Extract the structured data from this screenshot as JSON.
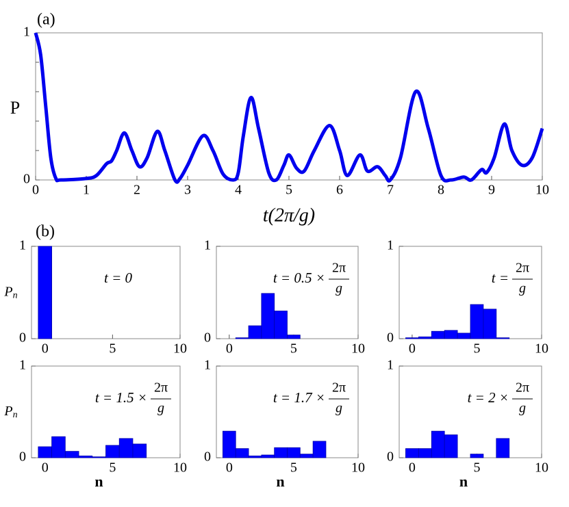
{
  "chart_data": [
    {
      "type": "line",
      "panel_label": "(a)",
      "xlabel": "t(2π/g)",
      "ylabel": "P",
      "color": "#0000ee",
      "x": [
        0,
        0.1,
        0.2,
        0.3,
        0.4,
        0.5,
        1.0,
        1.2,
        1.4,
        1.5,
        1.6,
        1.75,
        1.9,
        2.05,
        2.2,
        2.4,
        2.55,
        2.75,
        2.85,
        3.0,
        3.3,
        3.5,
        3.7,
        3.9,
        4.0,
        4.1,
        4.25,
        4.4,
        4.6,
        4.75,
        4.9,
        5.0,
        5.15,
        5.3,
        5.5,
        5.8,
        6.0,
        6.15,
        6.4,
        6.55,
        6.75,
        6.9,
        7.0,
        7.2,
        7.5,
        7.75,
        8.0,
        8.2,
        8.45,
        8.6,
        8.8,
        8.9,
        9.05,
        9.25,
        9.4,
        9.6,
        9.8,
        10
      ],
      "values": [
        1.0,
        0.85,
        0.5,
        0.15,
        0.01,
        0.0,
        0.01,
        0.03,
        0.11,
        0.13,
        0.2,
        0.32,
        0.2,
        0.09,
        0.15,
        0.33,
        0.2,
        0.0,
        0.01,
        0.1,
        0.3,
        0.2,
        0.04,
        0.0,
        0.05,
        0.3,
        0.56,
        0.35,
        0.05,
        0.0,
        0.1,
        0.17,
        0.08,
        0.06,
        0.2,
        0.37,
        0.2,
        0.03,
        0.17,
        0.06,
        0.09,
        0.03,
        0.0,
        0.15,
        0.6,
        0.35,
        0.03,
        0.0,
        0.02,
        0.0,
        0.07,
        0.05,
        0.15,
        0.38,
        0.2,
        0.1,
        0.15,
        0.35
      ],
      "xlim": [
        0,
        10
      ],
      "ylim": [
        0,
        1
      ],
      "xticks": [
        0,
        1,
        2,
        3,
        4,
        5,
        6,
        7,
        8,
        9,
        10
      ],
      "yticks": [
        0,
        1
      ],
      "yminorticks": [
        0.2,
        0.4,
        0.6,
        0.8
      ]
    },
    {
      "type": "bar",
      "panel_label": "(b)",
      "ylabel": "P",
      "ylabel_sub": "n",
      "annotation": {
        "text": "t = 0"
      },
      "color": "#0000ff",
      "x": [
        0
      ],
      "values": [
        1.0
      ],
      "xlim": [
        -1,
        10
      ],
      "ylim": [
        0,
        1
      ],
      "xticks": [
        0,
        5,
        10
      ],
      "yticks": [
        0,
        1
      ]
    },
    {
      "type": "bar",
      "annotation": {
        "text": "t = 0.5 ×",
        "numerator": "2π",
        "denominator": "g"
      },
      "color": "#0000ff",
      "x": [
        1,
        2,
        3,
        4,
        5
      ],
      "values": [
        0.01,
        0.14,
        0.49,
        0.3,
        0.04
      ],
      "xlim": [
        -1,
        10
      ],
      "ylim": [
        0,
        1
      ],
      "xticks": [
        0,
        5,
        10
      ],
      "yticks": [
        0,
        1
      ]
    },
    {
      "type": "bar",
      "annotation": {
        "text": "t =",
        "numerator": "2π",
        "denominator": "g"
      },
      "color": "#0000ff",
      "x": [
        0,
        1,
        2,
        3,
        4,
        5,
        6,
        7
      ],
      "values": [
        0.01,
        0.02,
        0.08,
        0.09,
        0.06,
        0.37,
        0.32,
        0.01
      ],
      "xlim": [
        -1,
        10
      ],
      "ylim": [
        0,
        1
      ],
      "xticks": [
        0,
        5,
        10
      ],
      "yticks": [
        0,
        1
      ]
    },
    {
      "type": "bar",
      "ylabel": "P",
      "ylabel_sub": "n",
      "xlabel": "n",
      "annotation": {
        "text": "t = 1.5 ×",
        "numerator": "2π",
        "denominator": "g"
      },
      "color": "#0000ff",
      "x": [
        0,
        1,
        2,
        3,
        4,
        5,
        6,
        7
      ],
      "values": [
        0.12,
        0.23,
        0.07,
        0.02,
        0.01,
        0.135,
        0.21,
        0.15
      ],
      "xlim": [
        -1,
        10
      ],
      "ylim": [
        0,
        1
      ],
      "xticks": [
        0,
        5,
        10
      ],
      "yticks": [
        0,
        1
      ]
    },
    {
      "type": "bar",
      "xlabel": "n",
      "annotation": {
        "text": "t = 1.7 ×",
        "numerator": "2π",
        "denominator": "g"
      },
      "color": "#0000ff",
      "x": [
        0,
        1,
        2,
        3,
        4,
        5,
        6,
        7
      ],
      "values": [
        0.29,
        0.1,
        0.02,
        0.03,
        0.11,
        0.11,
        0.04,
        0.18
      ],
      "xlim": [
        -1,
        10
      ],
      "ylim": [
        0,
        1
      ],
      "xticks": [
        0,
        5,
        10
      ],
      "yticks": [
        0,
        1
      ]
    },
    {
      "type": "bar",
      "xlabel": "n",
      "annotation": {
        "text": "t = 2 ×",
        "numerator": "2π",
        "denominator": "g"
      },
      "color": "#0000ff",
      "x": [
        0,
        1,
        2,
        3,
        5,
        7
      ],
      "values": [
        0.1,
        0.1,
        0.29,
        0.25,
        0.04,
        0.21
      ],
      "xlim": [
        -1,
        10
      ],
      "ylim": [
        0,
        1
      ],
      "xticks": [
        0,
        5,
        10
      ],
      "yticks": [
        0,
        1
      ]
    }
  ]
}
